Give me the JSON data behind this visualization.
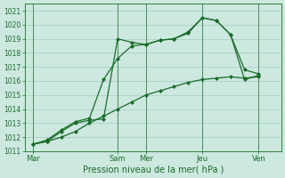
{
  "xlabel": "Pression niveau de la mer( hPa )",
  "bg_color": "#cce8df",
  "grid_color": "#aacfc6",
  "line_color": "#1a6b2a",
  "ylim": [
    1011,
    1021.5
  ],
  "yticks": [
    1011,
    1012,
    1013,
    1014,
    1015,
    1016,
    1017,
    1018,
    1019,
    1020,
    1021
  ],
  "xtick_labels": [
    "Mar",
    "Sam",
    "Mer",
    "Jeu",
    "Ven"
  ],
  "xtick_positions": [
    0,
    3,
    4,
    6,
    8
  ],
  "vline_positions": [
    0,
    3,
    4,
    6,
    8
  ],
  "line1_x": [
    0,
    0.5,
    1,
    1.5,
    2,
    2.5,
    3,
    3.5,
    4,
    4.5,
    5,
    5.5,
    6,
    6.5,
    7,
    7.5,
    8
  ],
  "line1_y": [
    1011.5,
    1011.7,
    1012.4,
    1013.0,
    1013.2,
    1013.3,
    1019.0,
    1018.75,
    1018.6,
    1018.9,
    1019.0,
    1019.4,
    1020.5,
    1020.3,
    1019.3,
    1016.1,
    1016.4
  ],
  "line2_x": [
    0,
    0.5,
    1,
    1.5,
    2,
    2.5,
    3,
    3.5,
    4,
    4.5,
    5,
    5.5,
    6,
    6.5,
    7,
    7.5,
    8
  ],
  "line2_y": [
    1011.5,
    1011.8,
    1012.5,
    1013.1,
    1013.35,
    1016.1,
    1017.6,
    1018.5,
    1018.6,
    1018.9,
    1019.0,
    1019.5,
    1020.5,
    1020.3,
    1019.3,
    1016.8,
    1016.5
  ],
  "line3_x": [
    0,
    0.5,
    1,
    1.5,
    2,
    2.5,
    3,
    3.5,
    4,
    4.5,
    5,
    5.5,
    6,
    6.5,
    7,
    7.5,
    8
  ],
  "line3_y": [
    1011.5,
    1011.7,
    1012.0,
    1012.4,
    1013.0,
    1013.5,
    1014.0,
    1014.5,
    1015.0,
    1015.3,
    1015.6,
    1015.9,
    1016.1,
    1016.2,
    1016.3,
    1016.2,
    1016.3
  ],
  "marker": "D",
  "markersize": 2.0,
  "linewidth": 0.9,
  "ytick_fontsize": 5.5,
  "xtick_fontsize": 6.0,
  "xlabel_fontsize": 7.0
}
